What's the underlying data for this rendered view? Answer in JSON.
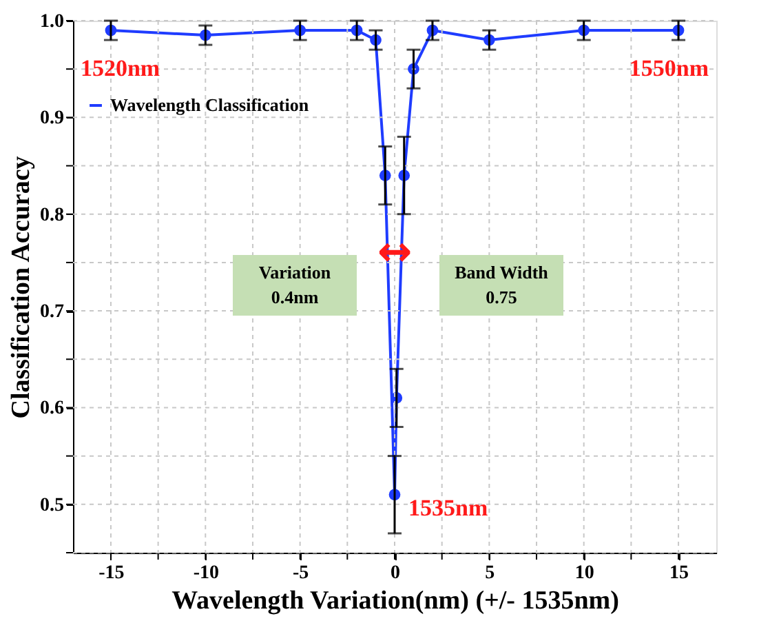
{
  "chart_data": {
    "type": "line",
    "xlabel": "Wavelength Variation(nm) (+/- 1535nm)",
    "ylabel": "Classification Accuracy",
    "x": [
      -15,
      -10,
      -5,
      -2,
      -1,
      -0.5,
      0,
      0.1,
      0.5,
      1,
      2,
      5,
      10,
      15
    ],
    "series": [
      {
        "name": "Wavelength Classification",
        "color": "#1f3cff",
        "values": [
          0.99,
          0.985,
          0.99,
          0.99,
          0.98,
          0.84,
          0.51,
          0.61,
          0.84,
          0.95,
          0.99,
          0.98,
          0.99,
          0.99
        ],
        "errors": [
          0.01,
          0.01,
          0.01,
          0.01,
          0.01,
          0.03,
          0.04,
          0.03,
          0.04,
          0.02,
          0.01,
          0.01,
          0.01,
          0.01
        ]
      }
    ],
    "xlim": [
      -17,
      17
    ],
    "xticks": [
      -15,
      {
        "value": -12.5,
        "label": null
      },
      -10,
      {
        "value": -7.5,
        "label": null
      },
      -5,
      {
        "value": -2.5,
        "label": null
      },
      0,
      {
        "value": 2.5,
        "label": null
      },
      5,
      {
        "value": 7.5,
        "label": null
      },
      10,
      {
        "value": 12.5,
        "label": null
      },
      15
    ],
    "ylim": [
      0.45,
      1.0
    ],
    "yticks": [
      {
        "value": 0.45,
        "label": null
      },
      0.5,
      {
        "value": 0.55,
        "label": null
      },
      0.6,
      {
        "value": 0.65,
        "label": null
      },
      0.7,
      {
        "value": 0.75,
        "label": null
      },
      0.8,
      {
        "value": 0.85,
        "label": null
      },
      0.9,
      {
        "value": 0.95,
        "label": null
      },
      {
        "value": 1,
        "label": "1.0"
      }
    ],
    "grid": true,
    "legend": "top left",
    "marker": "circle",
    "line_style": "solid",
    "annotations": [
      {
        "text": "1520nm",
        "x": -15,
        "y": 0.99
      },
      {
        "text": "1550nm",
        "x": 15,
        "y": 0.99
      },
      {
        "text": "1535nm",
        "x": 0,
        "y": 0.51
      },
      {
        "text": "↔",
        "x": 0,
        "y": 0.76
      },
      "Variation\n0.4nm",
      "Band Width\n0.75"
    ]
  }
}
